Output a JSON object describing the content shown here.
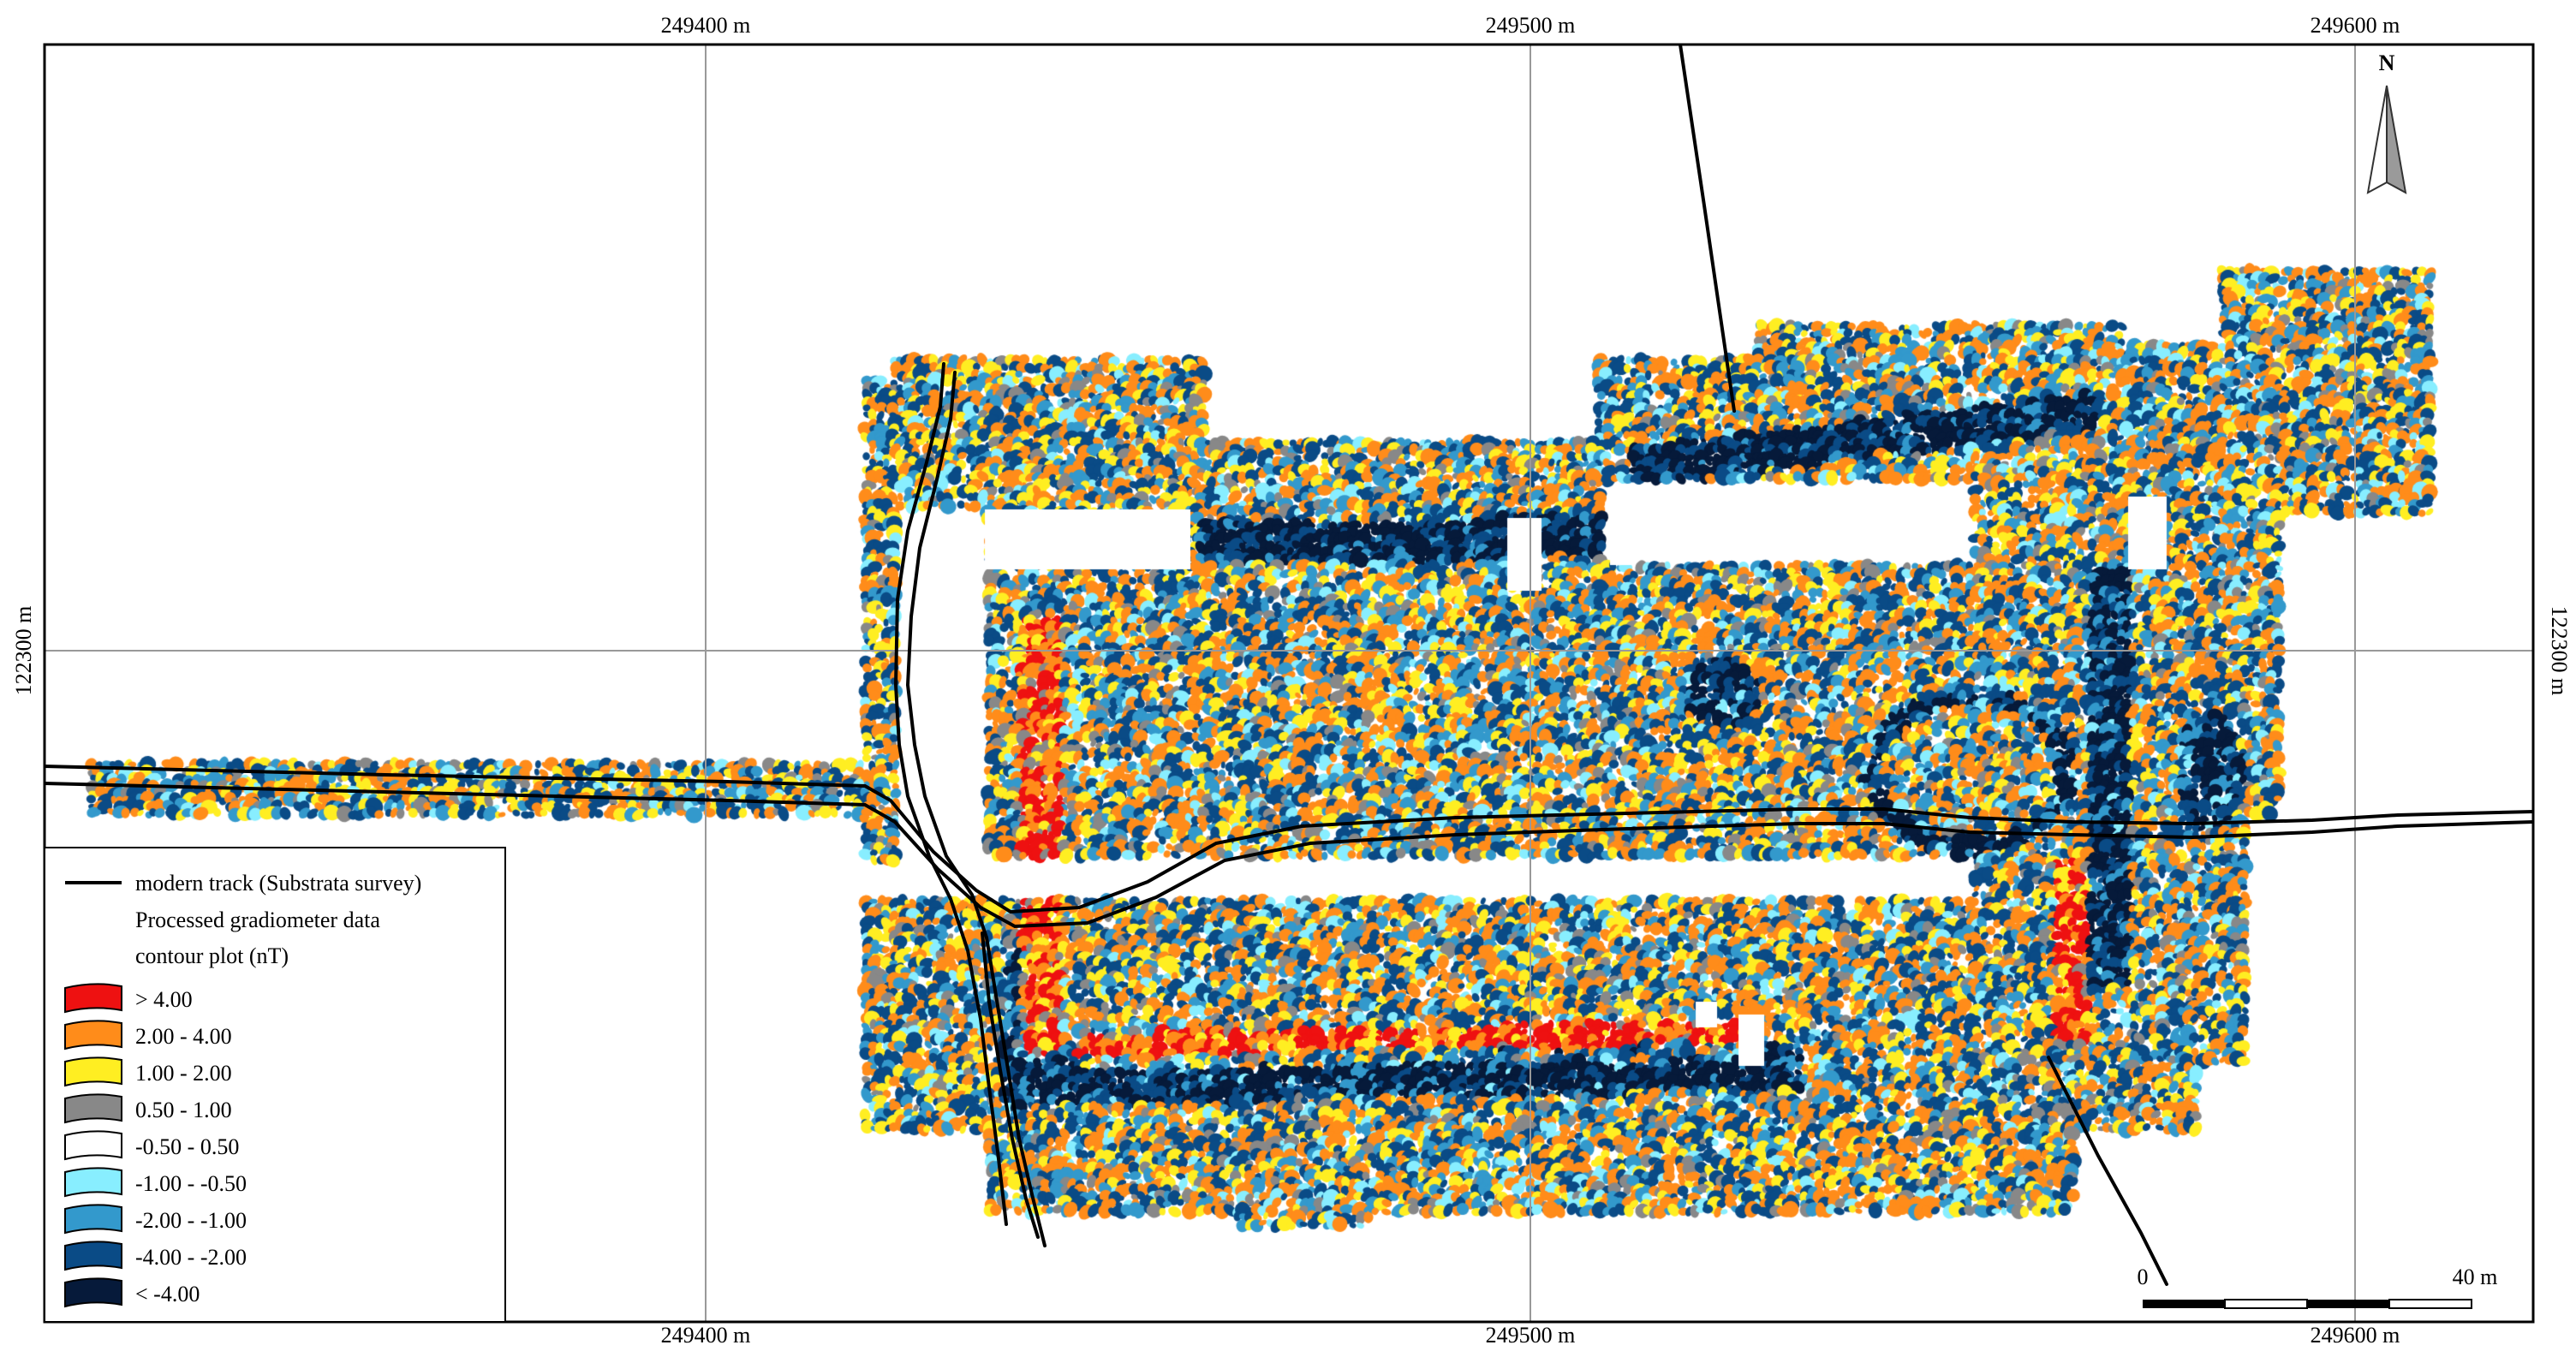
{
  "map": {
    "grid": {
      "x_labels": [
        "249400 m",
        "249500 m",
        "249600 m"
      ],
      "y_label": "122300 m"
    },
    "north_arrow": {
      "letter": "N",
      "icon": "north-arrow-icon"
    },
    "scale_bar": {
      "start_label": "0",
      "end_label": "40 m"
    },
    "legend": {
      "track_label": "modern track (Substrata survey)",
      "data_title_line1": "Processed gradiometer data",
      "data_title_line2": "contour plot (nT)",
      "classes": [
        {
          "label": "> 4.00",
          "color": "#ee1111"
        },
        {
          "label": "2.00 - 4.00",
          "color": "#ff8c1a"
        },
        {
          "label": "1.00 - 2.00",
          "color": "#ffee22"
        },
        {
          "label": "0.50 - 1.00",
          "color": "#888888"
        },
        {
          "label": "-0.50 - 0.50",
          "color": "#ffffff"
        },
        {
          "label": "-1.00 - -0.50",
          "color": "#88eeff"
        },
        {
          "label": "-2.00 - -1.00",
          "color": "#3399cc"
        },
        {
          "label": "-4.00 - -2.00",
          "color": "#0a4b86"
        },
        {
          "label": "< -4.00",
          "color": "#061a3a"
        }
      ]
    },
    "colors": {
      "frame": "#000000",
      "grid": "#999999",
      "track": "#000000"
    }
  }
}
